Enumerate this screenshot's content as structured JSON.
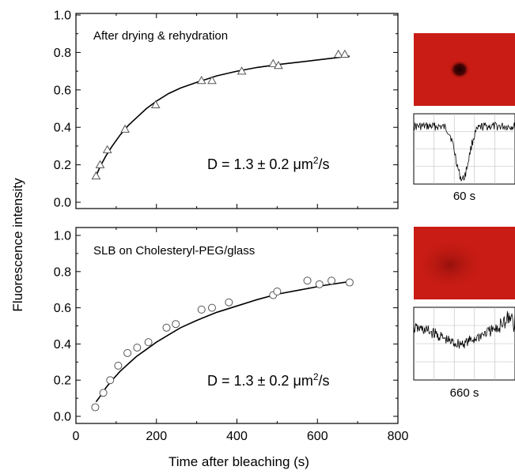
{
  "figure": {
    "ylabel": "Fluorescence intensity",
    "xlabel": "Time after bleaching (s)"
  },
  "chart_data": [
    {
      "type": "scatter",
      "title": "",
      "annotation": "After drying & rehydration",
      "d_label": {
        "prefix": "D = 1.3 ± 0.2 ",
        "unit_mu": "μ",
        "unit_m": "m",
        "unit_sup": "2",
        "unit_tail": "/s"
      },
      "xlabel": "",
      "ylabel": "Fluorescence intensity",
      "xlim": [
        0,
        800
      ],
      "ylim": [
        0.0,
        1.0
      ],
      "xticks": [
        0,
        200,
        400,
        600,
        800
      ],
      "yticks": [
        "0.0",
        "0.2",
        "0.4",
        "0.6",
        "0.8",
        "1.0"
      ],
      "show_xtick_labels": false,
      "marker": "triangle",
      "series": [
        {
          "x": [
            50,
            60,
            78,
            122,
            198,
            312,
            338,
            412,
            490,
            503,
            652,
            668
          ],
          "y": [
            0.14,
            0.2,
            0.28,
            0.39,
            0.52,
            0.65,
            0.65,
            0.7,
            0.74,
            0.73,
            0.79,
            0.79
          ]
        }
      ],
      "fit": {
        "x": [
          50,
          60,
          75,
          90,
          110,
          130,
          150,
          175,
          200,
          230,
          260,
          300,
          350,
          400,
          450,
          500,
          560,
          620,
          680
        ],
        "y": [
          0.14,
          0.19,
          0.25,
          0.3,
          0.36,
          0.41,
          0.45,
          0.5,
          0.54,
          0.58,
          0.61,
          0.64,
          0.675,
          0.7,
          0.72,
          0.735,
          0.75,
          0.765,
          0.78
        ]
      },
      "thumbnail_label": "60 s"
    },
    {
      "type": "scatter",
      "title": "",
      "annotation": "SLB on Cholesteryl-PEG/glass",
      "d_label": {
        "prefix": "D = 1.3 ± 0.2 ",
        "unit_mu": "μ",
        "unit_m": "m",
        "unit_sup": "2",
        "unit_tail": "/s"
      },
      "xlabel": "Time after bleaching (s)",
      "ylabel": "Fluorescence intensity",
      "xlim": [
        0,
        800
      ],
      "ylim": [
        0.0,
        1.0
      ],
      "xticks": [
        "0",
        "200",
        "400",
        "600",
        "800"
      ],
      "yticks": [
        "0.0",
        "0.2",
        "0.4",
        "0.6",
        "0.8",
        "1.0"
      ],
      "show_xtick_labels": true,
      "marker": "circle",
      "series": [
        {
          "x": [
            48,
            68,
            85,
            105,
            128,
            152,
            180,
            225,
            248,
            312,
            338,
            380,
            490,
            500,
            575,
            605,
            635,
            680
          ],
          "y": [
            0.05,
            0.13,
            0.2,
            0.28,
            0.35,
            0.38,
            0.41,
            0.49,
            0.51,
            0.59,
            0.6,
            0.63,
            0.67,
            0.69,
            0.75,
            0.73,
            0.75,
            0.74
          ]
        }
      ],
      "fit": {
        "x": [
          50,
          60,
          75,
          90,
          110,
          130,
          150,
          175,
          200,
          230,
          260,
          300,
          350,
          400,
          450,
          500,
          560,
          620,
          680
        ],
        "y": [
          0.08,
          0.11,
          0.16,
          0.2,
          0.25,
          0.29,
          0.33,
          0.37,
          0.41,
          0.45,
          0.49,
          0.53,
          0.575,
          0.61,
          0.645,
          0.675,
          0.7,
          0.725,
          0.745
        ]
      },
      "thumbnail_label": "660 s"
    }
  ],
  "thumbnails": [
    {
      "image_color": "#c81c14",
      "has_spot": true,
      "label": "60 s"
    },
    {
      "image_color": "#c81c14",
      "has_spot": false,
      "label": "660 s"
    }
  ]
}
